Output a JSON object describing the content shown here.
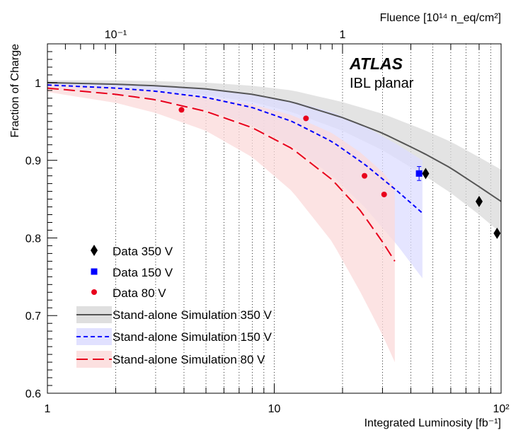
{
  "chart_data": {
    "type": "scatter",
    "title": "",
    "xlabel": "Integrated Luminosity [fb⁻¹]",
    "ylabel": "Fraction of Charge",
    "top_axis_label": "Fluence [10¹⁴ n_eq/cm²]",
    "x_scale": "log",
    "xlim": [
      1,
      100
    ],
    "ylim": [
      0.6,
      1.05
    ],
    "grid": "vertical dotted lines at log ticks",
    "x_ticks": [
      {
        "value": 1,
        "label": "1"
      },
      {
        "value": 10,
        "label": "10"
      },
      {
        "value": 100,
        "label": "10²"
      }
    ],
    "y_ticks": [
      {
        "value": 0.6,
        "label": "0.6"
      },
      {
        "value": 0.7,
        "label": "0.7"
      },
      {
        "value": 0.8,
        "label": "0.8"
      },
      {
        "value": 0.9,
        "label": "0.9"
      },
      {
        "value": 1.0,
        "label": "1"
      }
    ],
    "top_ticks": [
      {
        "lumi": 2.0,
        "label": "10⁻¹"
      },
      {
        "lumi": 20.0,
        "label": "1"
      }
    ],
    "annotations": {
      "experiment": "ATLAS",
      "detector": "IBL planar"
    },
    "legend_position": "bottom-left",
    "series": [
      {
        "name": "Data 350 V",
        "kind": "points",
        "marker": "diamond",
        "color": "#000000",
        "points": [
          {
            "x": 46.5,
            "y": 0.883
          },
          {
            "x": 80.0,
            "y": 0.847
          },
          {
            "x": 96.0,
            "y": 0.806
          }
        ]
      },
      {
        "name": "Data 150 V",
        "kind": "points",
        "marker": "square",
        "color": "#0000ff",
        "points": [
          {
            "x": 43.5,
            "y": 0.883,
            "err": 0.009
          }
        ]
      },
      {
        "name": "Data   80 V",
        "kind": "points",
        "marker": "circle",
        "color": "#e8001c",
        "points": [
          {
            "x": 3.9,
            "y": 0.965
          },
          {
            "x": 13.8,
            "y": 0.954
          },
          {
            "x": 25.0,
            "y": 0.88
          },
          {
            "x": 30.5,
            "y": 0.856
          }
        ]
      },
      {
        "name": "Stand-alone Simulation 350 V",
        "kind": "curve",
        "line": "solid",
        "color": "#555555",
        "band_color": "#d9d9d9",
        "x": [
          1,
          2,
          3,
          5,
          8,
          12,
          20,
          30,
          45,
          60,
          80,
          100
        ],
        "y": [
          1.0,
          0.998,
          0.996,
          0.992,
          0.985,
          0.975,
          0.955,
          0.935,
          0.91,
          0.89,
          0.866,
          0.847
        ],
        "band_lo": [
          0.996,
          0.993,
          0.99,
          0.984,
          0.975,
          0.962,
          0.938,
          0.913,
          0.882,
          0.858,
          0.83,
          0.806
        ],
        "band_hi": [
          1.003,
          1.003,
          1.002,
          1.0,
          0.996,
          0.99,
          0.975,
          0.96,
          0.94,
          0.924,
          0.904,
          0.888
        ]
      },
      {
        "name": "Stand-alone Simulation 150 V",
        "kind": "curve",
        "line": "dashed",
        "color": "#0000ff",
        "band_color": "#dcdcff",
        "x": [
          1,
          2,
          3,
          5,
          8,
          12,
          18,
          25,
          35,
          45
        ],
        "y": [
          0.997,
          0.993,
          0.989,
          0.981,
          0.968,
          0.95,
          0.924,
          0.895,
          0.86,
          0.832
        ],
        "band_lo": [
          0.993,
          0.985,
          0.978,
          0.965,
          0.945,
          0.918,
          0.88,
          0.84,
          0.79,
          0.748
        ],
        "band_hi": [
          1.0,
          0.999,
          0.997,
          0.993,
          0.986,
          0.976,
          0.962,
          0.944,
          0.92,
          0.9
        ]
      },
      {
        "name": "Stand-alone Simulation   80 V",
        "kind": "curve",
        "line": "long-dashed",
        "color": "#e8001c",
        "band_color": "#fbdada",
        "x": [
          1,
          2,
          3,
          5,
          8,
          12,
          18,
          24,
          30,
          34
        ],
        "y": [
          0.993,
          0.985,
          0.978,
          0.963,
          0.942,
          0.915,
          0.875,
          0.835,
          0.795,
          0.77
        ],
        "band_lo": [
          0.988,
          0.974,
          0.961,
          0.938,
          0.904,
          0.86,
          0.795,
          0.73,
          0.675,
          0.64
        ],
        "band_hi": [
          0.998,
          0.994,
          0.99,
          0.982,
          0.972,
          0.958,
          0.935,
          0.91,
          0.885,
          0.865
        ]
      }
    ]
  }
}
